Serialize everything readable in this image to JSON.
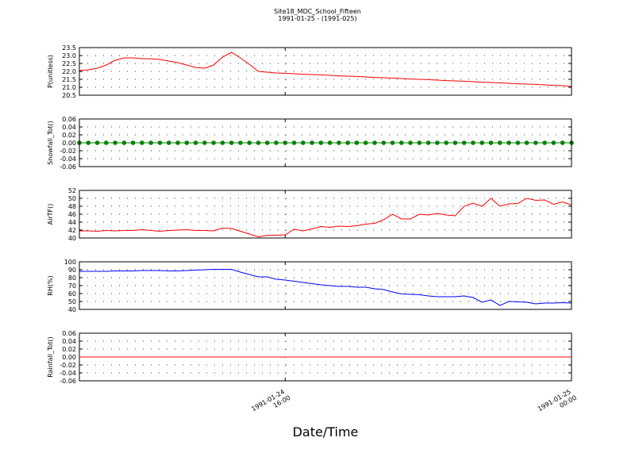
{
  "chart_data": {
    "type": "line",
    "title": "Site18_MDC_School_Fifteen",
    "subtitle": "1991-01-25 - (1991-025)",
    "xlabel": "Date/Time",
    "x": [
      "1991-01-24 10:15",
      "1991-01-24 10:30",
      "1991-01-24 10:45",
      "1991-01-24 11:00",
      "1991-01-24 11:15",
      "1991-01-24 11:30",
      "1991-01-24 11:45",
      "1991-01-24 12:00",
      "1991-01-24 12:15",
      "1991-01-24 12:30",
      "1991-01-24 12:45",
      "1991-01-24 13:00",
      "1991-01-24 13:15",
      "1991-01-24 13:30",
      "1991-01-24 13:45",
      "1991-01-24 14:00",
      "1991-01-24 14:15",
      "1991-01-24 14:30",
      "1991-01-24 14:45",
      "1991-01-24 15:00",
      "1991-01-24 15:15",
      "1991-01-24 15:30",
      "1991-01-24 15:45",
      "1991-01-24 16:00",
      "1991-01-24 16:15",
      "1991-01-24 16:30",
      "1991-01-24 16:45",
      "1991-01-24 17:00",
      "1991-01-24 17:15",
      "1991-01-24 17:30",
      "1991-01-24 17:45",
      "1991-01-24 18:00",
      "1991-01-24 18:15",
      "1991-01-24 18:30",
      "1991-01-24 18:45",
      "1991-01-24 19:00",
      "1991-01-24 19:15",
      "1991-01-24 19:30",
      "1991-01-24 19:45",
      "1991-01-24 20:00",
      "1991-01-24 20:15",
      "1991-01-24 20:30",
      "1991-01-24 20:45",
      "1991-01-24 21:00",
      "1991-01-24 21:15",
      "1991-01-24 21:30",
      "1991-01-24 21:45",
      "1991-01-24 22:00",
      "1991-01-24 22:15",
      "1991-01-24 22:30",
      "1991-01-24 22:45",
      "1991-01-24 23:00",
      "1991-01-24 23:15",
      "1991-01-24 23:30",
      "1991-01-24 23:45",
      "1991-01-25 00:00"
    ],
    "xlim": [
      "1991-01-24 10:15",
      "1991-01-25 00:00"
    ],
    "xticks": [
      "1991-01-24 16:00",
      "1991-01-25 00:00"
    ],
    "grid": true,
    "panels": [
      {
        "ylabel": "P(unitless)",
        "color": "#ff0000",
        "markers": false,
        "ylim": [
          20.5,
          23.5
        ],
        "yticks": [
          20.5,
          {
            "value": 21,
            "label": "21.0"
          },
          21.5,
          {
            "value": 22,
            "label": "22.0"
          },
          22.5,
          {
            "value": 23,
            "label": "23.0"
          },
          23.5
        ],
        "values": [
          22.05,
          22.1,
          22.2,
          22.4,
          22.7,
          22.85,
          22.85,
          22.8,
          22.8,
          22.75,
          22.65,
          22.55,
          22.4,
          22.25,
          22.2,
          22.4,
          22.9,
          23.2,
          22.85,
          22.45,
          22.0,
          21.95,
          21.9,
          21.88,
          21.85,
          21.82,
          21.8,
          21.78,
          21.75,
          21.72,
          21.7,
          21.68,
          21.65,
          21.62,
          21.6,
          21.58,
          21.55,
          21.52,
          21.5,
          21.48,
          21.45,
          21.42,
          21.4,
          21.38,
          21.35,
          21.32,
          21.3,
          21.28,
          21.25,
          21.22,
          21.2,
          21.18,
          21.15,
          21.12,
          21.1,
          21.05
        ]
      },
      {
        "ylabel": "Snowfall_Tot()",
        "color": "#008000",
        "markers": true,
        "ylim": [
          -0.06,
          0.06
        ],
        "yticks": [
          -0.06,
          -0.04,
          -0.02,
          {
            "value": 0,
            "label": "0.00"
          },
          0.02,
          0.04,
          0.06
        ],
        "values": [
          0,
          0,
          0,
          0,
          0,
          0,
          0,
          0,
          0,
          0,
          0,
          0,
          0,
          0,
          0,
          0,
          0,
          0,
          0,
          0,
          0,
          0,
          0,
          0,
          0,
          0,
          0,
          0,
          0,
          0,
          0,
          0,
          0,
          0,
          0,
          0,
          0,
          0,
          0,
          0,
          0,
          0,
          0,
          0,
          0,
          0,
          0,
          0,
          0,
          0,
          0,
          0,
          0,
          0,
          0,
          0
        ]
      },
      {
        "ylabel": "AirTF()",
        "color": "#ff0000",
        "markers": false,
        "ylim": [
          40,
          52
        ],
        "yticks": [
          40,
          42,
          44,
          46,
          48,
          50,
          52
        ],
        "values": [
          41.8,
          41.8,
          41.7,
          41.9,
          41.8,
          41.9,
          41.9,
          42.1,
          41.9,
          41.7,
          41.9,
          42.0,
          42.1,
          41.9,
          41.9,
          41.8,
          42.5,
          42.4,
          41.7,
          41.0,
          40.3,
          40.7,
          40.7,
          40.8,
          42.2,
          41.8,
          42.3,
          42.9,
          42.7,
          43.0,
          42.9,
          43.1,
          43.5,
          43.7,
          44.6,
          46.0,
          44.8,
          44.8,
          46.0,
          45.8,
          46.2,
          45.8,
          45.6,
          48.0,
          48.8,
          48.0,
          50.0,
          48.0,
          48.6,
          48.7,
          50.0,
          49.5,
          49.6,
          48.5,
          49.1,
          48.3
        ]
      },
      {
        "ylabel": "RH(%)",
        "color": "#0000ff",
        "markers": false,
        "ylim": [
          40,
          100
        ],
        "yticks": [
          40,
          50,
          60,
          70,
          80,
          90,
          100
        ],
        "values": [
          88,
          88,
          88,
          88,
          88.5,
          88.5,
          88.5,
          89,
          89,
          89,
          88.5,
          88.5,
          89,
          89.5,
          90,
          90.5,
          90.5,
          90.5,
          87,
          84,
          81,
          81,
          78,
          77,
          75.5,
          74,
          72.5,
          71,
          70,
          69,
          69,
          68,
          68,
          66,
          65,
          62,
          59.5,
          59,
          58.5,
          57,
          56,
          56,
          56,
          57,
          55,
          49,
          52,
          45,
          50,
          49.5,
          49,
          47,
          48,
          48,
          48.5,
          48
        ]
      },
      {
        "ylabel": "Rainfall_Tot()",
        "color": "#ff0000",
        "markers": false,
        "ylim": [
          -0.06,
          0.06
        ],
        "yticks": [
          -0.06,
          -0.04,
          -0.02,
          {
            "value": 0,
            "label": "0.00"
          },
          0.02,
          0.04,
          0.06
        ],
        "values": [
          0,
          0,
          0,
          0,
          0,
          0,
          0,
          0,
          0,
          0,
          0,
          0,
          0,
          0,
          0,
          0,
          0,
          0,
          0,
          0,
          0,
          0,
          0,
          0,
          0,
          0,
          0,
          0,
          0,
          0,
          0,
          0,
          0,
          0,
          0,
          0,
          0,
          0,
          0,
          0,
          0,
          0,
          0,
          0,
          0,
          0,
          0,
          0,
          0,
          0,
          0,
          0,
          0,
          0,
          0,
          0
        ]
      }
    ]
  }
}
